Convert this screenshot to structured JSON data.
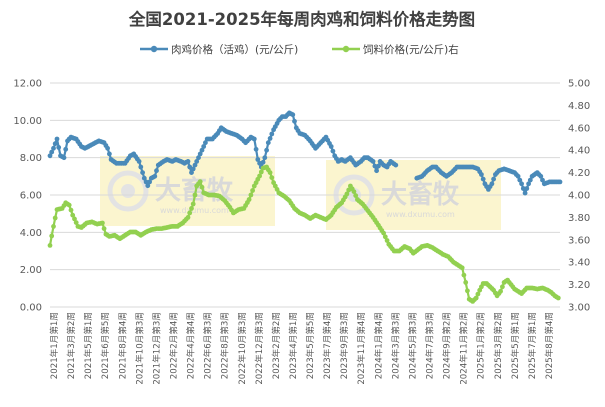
{
  "colors": {
    "meat_chicken": "#4a8ab9",
    "feed": "#92d050",
    "grid": "#d9d9d9",
    "watermark_bg": "#fbf5cf"
  },
  "watermark": {
    "text": "大畜牧",
    "sub": "www.dxumu.com"
  },
  "chart_data": {
    "type": "line",
    "title": "全国2021-2025年每周肉鸡和饲料价格走势图",
    "legend_position": "top",
    "y_left": {
      "min": 0,
      "max": 12,
      "ticks": [
        "0.00",
        "2.00",
        "4.00",
        "6.00",
        "8.00",
        "10.00",
        "12.00"
      ]
    },
    "y_right": {
      "min": 3.0,
      "max": 5.0,
      "ticks": [
        "3.00",
        "3.20",
        "3.40",
        "3.60",
        "3.80",
        "4.00",
        "4.20",
        "4.40",
        "4.60",
        "4.80",
        "5.00"
      ]
    },
    "x_labels": [
      "2021年1月第1周",
      "2021年3月第2周",
      "2021年5月第1周",
      "2021年6月第5周",
      "2021年8月第4周",
      "2021年10月第3周",
      "2021年12月第3周",
      "2022年2月第4周",
      "2022年4月第4周",
      "2022年6月第3周",
      "2022年8月第3周",
      "2022年10月第3周",
      "2022年12月第3周",
      "2023年2月第2周",
      "2023年4月第1周",
      "2023年5月第5周",
      "2023年7月第4周",
      "2023年9月第3周",
      "2023年11月第4周",
      "2024年1月第4周",
      "2024年3月第3周",
      "2024年5月第3周",
      "2024年7月第3周",
      "2024年9月第2周",
      "2024年11月第2周",
      "2025年1月第2周",
      "2025年3月第2周",
      "2025年5月第1周",
      "2025年7月第1周",
      "2025年8月第4周"
    ],
    "series": [
      {
        "name": "肉鸡价格（活鸡）(元/公斤)",
        "axis": "left",
        "points": [
          [
            0,
            8.1
          ],
          [
            2,
            8.5
          ],
          [
            4,
            9.0
          ],
          [
            6,
            8.1
          ],
          [
            8,
            8.0
          ],
          [
            10,
            8.9
          ],
          [
            12,
            9.1
          ],
          [
            15,
            9.0
          ],
          [
            18,
            8.6
          ],
          [
            20,
            8.5
          ],
          [
            24,
            8.7
          ],
          [
            28,
            8.9
          ],
          [
            31,
            8.8
          ],
          [
            33,
            8.5
          ],
          [
            35,
            7.9
          ],
          [
            38,
            7.7
          ],
          [
            41,
            7.7
          ],
          [
            43,
            7.7
          ],
          [
            46,
            8.1
          ],
          [
            48,
            8.2
          ],
          [
            51,
            7.8
          ],
          [
            54,
            6.9
          ],
          [
            56,
            6.5
          ],
          [
            58,
            6.9
          ],
          [
            60,
            7.0
          ],
          [
            62,
            7.6
          ],
          [
            65,
            7.8
          ],
          [
            67,
            7.9
          ],
          [
            70,
            7.8
          ],
          [
            72,
            7.9
          ],
          [
            75,
            7.8
          ],
          [
            77,
            7.7
          ],
          [
            79,
            7.8
          ],
          [
            81,
            7.2
          ],
          [
            83,
            7.6
          ],
          [
            85,
            8.0
          ],
          [
            88,
            8.6
          ],
          [
            90,
            9.0
          ],
          [
            93,
            9.0
          ],
          [
            96,
            9.3
          ],
          [
            98,
            9.6
          ],
          [
            101,
            9.4
          ],
          [
            104,
            9.3
          ],
          [
            107,
            9.2
          ],
          [
            110,
            9.0
          ],
          [
            112,
            8.8
          ],
          [
            115,
            9.1
          ],
          [
            117,
            9.0
          ],
          [
            119,
            7.9
          ],
          [
            121,
            7.5
          ],
          [
            123,
            8.0
          ],
          [
            125,
            8.8
          ],
          [
            128,
            9.5
          ],
          [
            131,
            10.0
          ],
          [
            133,
            10.2
          ],
          [
            135,
            10.2
          ],
          [
            137,
            10.4
          ],
          [
            139,
            10.3
          ],
          [
            141,
            9.6
          ],
          [
            143,
            9.3
          ],
          [
            146,
            9.2
          ],
          [
            149,
            8.9
          ],
          [
            152,
            8.5
          ],
          [
            155,
            8.8
          ],
          [
            158,
            9.1
          ],
          [
            161,
            8.6
          ],
          [
            163,
            8.1
          ],
          [
            165,
            7.8
          ],
          [
            167,
            7.9
          ],
          [
            169,
            7.8
          ],
          [
            172,
            8.0
          ],
          [
            175,
            7.6
          ],
          [
            178,
            7.8
          ],
          [
            180,
            8.0
          ],
          [
            182,
            8.0
          ],
          [
            185,
            7.8
          ],
          [
            187,
            7.3
          ],
          [
            189,
            7.8
          ],
          [
            191,
            7.6
          ],
          [
            193,
            7.5
          ],
          [
            195,
            7.8
          ],
          [
            198,
            7.6
          ],
          [
            210,
            6.9
          ],
          [
            213,
            7.0
          ],
          [
            216,
            7.3
          ],
          [
            219,
            7.5
          ],
          [
            221,
            7.5
          ],
          [
            224,
            7.2
          ],
          [
            227,
            7.0
          ],
          [
            230,
            7.2
          ],
          [
            233,
            7.5
          ],
          [
            236,
            7.5
          ],
          [
            239,
            7.5
          ],
          [
            242,
            7.5
          ],
          [
            245,
            7.4
          ],
          [
            247,
            7.1
          ],
          [
            249,
            6.6
          ],
          [
            251,
            6.3
          ],
          [
            253,
            6.6
          ],
          [
            255,
            7.1
          ],
          [
            257,
            7.3
          ],
          [
            260,
            7.4
          ],
          [
            263,
            7.3
          ],
          [
            266,
            7.2
          ],
          [
            268,
            7.0
          ],
          [
            270,
            6.6
          ],
          [
            272,
            6.1
          ],
          [
            274,
            6.6
          ],
          [
            276,
            7.0
          ],
          [
            279,
            7.2
          ],
          [
            281,
            7.0
          ],
          [
            283,
            6.6
          ],
          [
            286,
            6.7
          ],
          [
            289,
            6.7
          ],
          [
            292,
            6.7
          ]
        ]
      },
      {
        "name": "饲料价格(元/公斤)右",
        "axis": "right",
        "points": [
          [
            0,
            3.55
          ],
          [
            2,
            3.72
          ],
          [
            4,
            3.87
          ],
          [
            7,
            3.88
          ],
          [
            9,
            3.93
          ],
          [
            11,
            3.91
          ],
          [
            13,
            3.82
          ],
          [
            16,
            3.72
          ],
          [
            18,
            3.71
          ],
          [
            21,
            3.75
          ],
          [
            24,
            3.76
          ],
          [
            27,
            3.74
          ],
          [
            30,
            3.75
          ],
          [
            32,
            3.65
          ],
          [
            34,
            3.63
          ],
          [
            37,
            3.64
          ],
          [
            40,
            3.61
          ],
          [
            43,
            3.64
          ],
          [
            46,
            3.67
          ],
          [
            49,
            3.67
          ],
          [
            52,
            3.64
          ],
          [
            55,
            3.67
          ],
          [
            58,
            3.69
          ],
          [
            61,
            3.7
          ],
          [
            64,
            3.7
          ],
          [
            67,
            3.71
          ],
          [
            70,
            3.72
          ],
          [
            73,
            3.72
          ],
          [
            76,
            3.75
          ],
          [
            79,
            3.8
          ],
          [
            82,
            3.92
          ],
          [
            84,
            4.08
          ],
          [
            86,
            4.12
          ],
          [
            88,
            4.02
          ],
          [
            91,
            4.0
          ],
          [
            94,
            4.0
          ],
          [
            97,
            3.99
          ],
          [
            100,
            3.95
          ],
          [
            103,
            3.89
          ],
          [
            105,
            3.84
          ],
          [
            108,
            3.87
          ],
          [
            111,
            3.88
          ],
          [
            114,
            3.96
          ],
          [
            117,
            4.08
          ],
          [
            120,
            4.17
          ],
          [
            122,
            4.24
          ],
          [
            124,
            4.25
          ],
          [
            126,
            4.2
          ],
          [
            128,
            4.11
          ],
          [
            131,
            4.02
          ],
          [
            134,
            3.99
          ],
          [
            137,
            3.95
          ],
          [
            140,
            3.88
          ],
          [
            143,
            3.84
          ],
          [
            146,
            3.82
          ],
          [
            149,
            3.79
          ],
          [
            152,
            3.82
          ],
          [
            155,
            3.8
          ],
          [
            158,
            3.78
          ],
          [
            161,
            3.82
          ],
          [
            164,
            3.89
          ],
          [
            167,
            3.93
          ],
          [
            170,
            4.01
          ],
          [
            172,
            4.08
          ],
          [
            174,
            4.03
          ],
          [
            176,
            3.96
          ],
          [
            179,
            3.92
          ],
          [
            182,
            3.86
          ],
          [
            185,
            3.8
          ],
          [
            188,
            3.73
          ],
          [
            191,
            3.66
          ],
          [
            194,
            3.56
          ],
          [
            197,
            3.5
          ],
          [
            200,
            3.5
          ],
          [
            203,
            3.54
          ],
          [
            206,
            3.52
          ],
          [
            208,
            3.48
          ],
          [
            213,
            3.54
          ],
          [
            216,
            3.55
          ],
          [
            219,
            3.53
          ],
          [
            222,
            3.5
          ],
          [
            225,
            3.47
          ],
          [
            228,
            3.45
          ],
          [
            231,
            3.4
          ],
          [
            234,
            3.37
          ],
          [
            236,
            3.35
          ],
          [
            238,
            3.22
          ],
          [
            240,
            3.07
          ],
          [
            242,
            3.05
          ],
          [
            244,
            3.08
          ],
          [
            246,
            3.15
          ],
          [
            248,
            3.21
          ],
          [
            250,
            3.21
          ],
          [
            252,
            3.18
          ],
          [
            254,
            3.15
          ],
          [
            256,
            3.1
          ],
          [
            258,
            3.14
          ],
          [
            260,
            3.22
          ],
          [
            262,
            3.24
          ],
          [
            264,
            3.2
          ],
          [
            266,
            3.16
          ],
          [
            268,
            3.14
          ],
          [
            270,
            3.12
          ],
          [
            273,
            3.17
          ],
          [
            276,
            3.17
          ],
          [
            279,
            3.16
          ],
          [
            282,
            3.17
          ],
          [
            285,
            3.15
          ],
          [
            287,
            3.13
          ],
          [
            289,
            3.1
          ],
          [
            291,
            3.08
          ]
        ]
      }
    ]
  }
}
